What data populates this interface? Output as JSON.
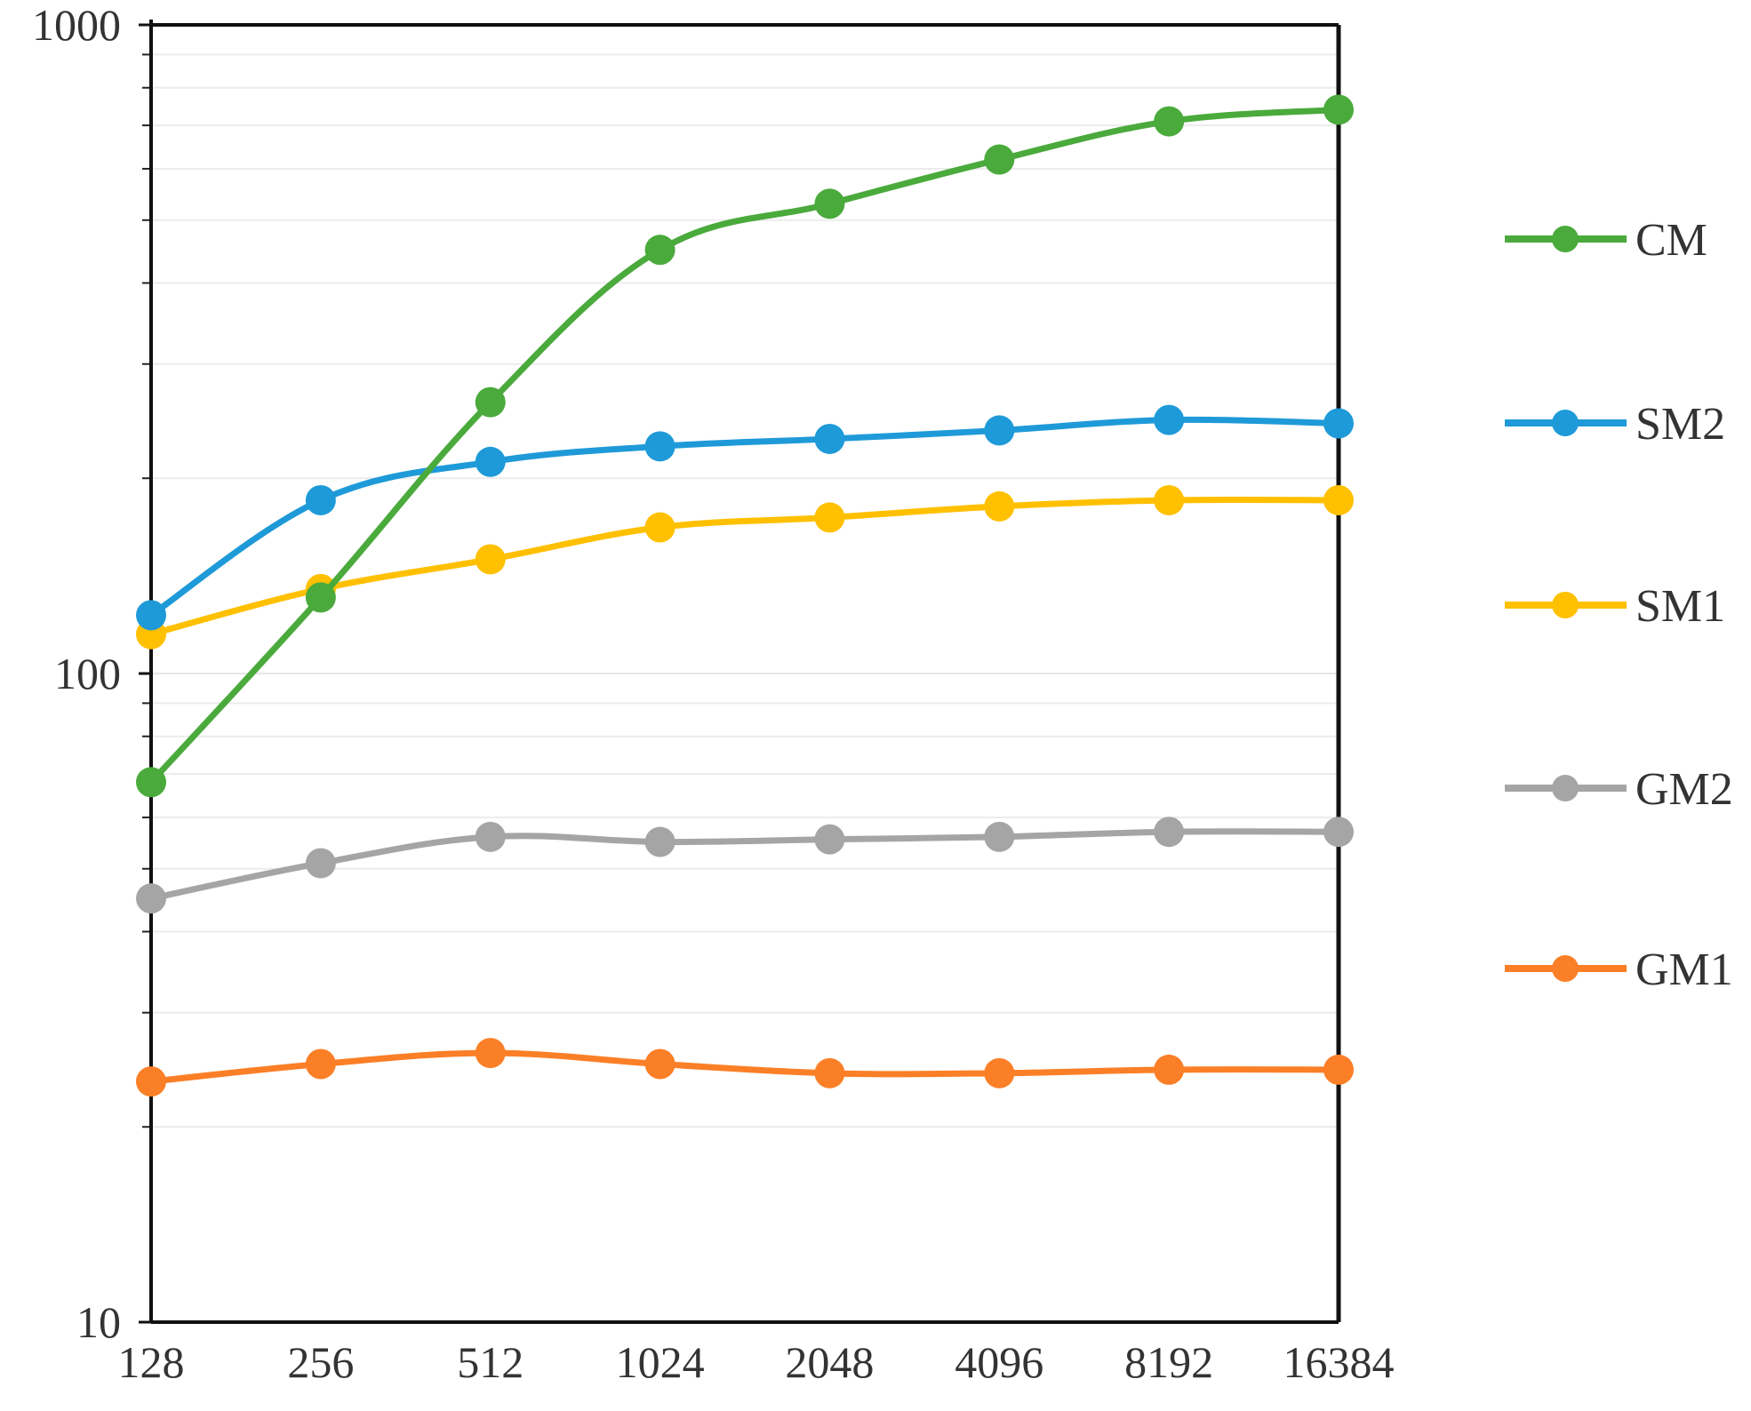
{
  "chart_data": {
    "type": "line",
    "title": "",
    "xlabel": "",
    "ylabel": "",
    "y_scale": "log",
    "ylim": [
      10,
      1000
    ],
    "y_ticks": [
      10,
      100,
      1000
    ],
    "y_tick_labels": [
      "10",
      "100",
      "1000"
    ],
    "categories": [
      "128",
      "256",
      "512",
      "1024",
      "2048",
      "4096",
      "8192",
      "16384"
    ],
    "grid": "horizontal minor",
    "legend_position": "right",
    "series": [
      {
        "name": "CM",
        "color": "#4aaa3c",
        "values": [
          68,
          131,
          262,
          450,
          530,
          620,
          710,
          740
        ]
      },
      {
        "name": "SM2",
        "color": "#1f9ad8",
        "values": [
          123,
          185,
          212,
          224,
          230,
          237,
          246,
          243
        ]
      },
      {
        "name": "SM1",
        "color": "#ffc000",
        "values": [
          115,
          135,
          150,
          168,
          174,
          181,
          185,
          185
        ]
      },
      {
        "name": "GM2",
        "color": "#a5a5a5",
        "values": [
          45,
          51,
          56,
          55,
          55.5,
          56,
          57,
          57
        ]
      },
      {
        "name": "GM1",
        "color": "#fb7f27",
        "values": [
          23.5,
          25,
          26,
          25,
          24.2,
          24.2,
          24.5,
          24.5
        ]
      }
    ]
  }
}
